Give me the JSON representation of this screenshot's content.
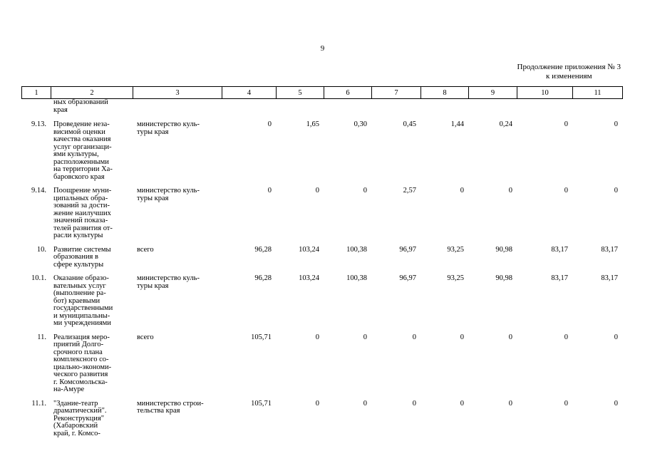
{
  "page_number": "9",
  "appendix": {
    "line1": "Продолжение приложения № 3",
    "line2": "к изменениям"
  },
  "header": [
    "1",
    "2",
    "3",
    "4",
    "5",
    "6",
    "7",
    "8",
    "9",
    "10",
    "11"
  ],
  "rows": [
    {
      "code": "",
      "name": "ных образований\nкрая",
      "executor": "",
      "values": [
        "",
        "",
        "",
        "",
        "",
        "",
        "",
        ""
      ]
    },
    {
      "code": "9.13.",
      "name": "Проведение неза-\nвисимой оценки\nкачества оказания\nуслуг организаци-\nями культуры,\nрасположенными\nна территории Ха-\nбаровского края",
      "executor": "министерство куль-\nтуры края",
      "values": [
        "0",
        "1,65",
        "0,30",
        "0,45",
        "1,44",
        "0,24",
        "0",
        "0"
      ]
    },
    {
      "code": "9.14.",
      "name": "Поощрение муни-\nципальных обра-\nзований за дости-\nжение наилучших\nзначений показа-\nтелей развития от-\nрасли культуры",
      "executor": "министерство куль-\nтуры края",
      "values": [
        "0",
        "0",
        "0",
        "2,57",
        "0",
        "0",
        "0",
        "0"
      ]
    },
    {
      "code": "10.",
      "name": "Развитие системы\nобразования в\nсфере культуры",
      "executor": "всего",
      "values": [
        "96,28",
        "103,24",
        "100,38",
        "96,97",
        "93,25",
        "90,98",
        "83,17",
        "83,17"
      ]
    },
    {
      "code": "10.1.",
      "name": "Оказание образо-\nвательных услуг\n(выполнение ра-\nбот) краевыми\nгосударственными\nи муниципальны-\nми учреждениями",
      "executor": "министерство куль-\nтуры края",
      "values": [
        "96,28",
        "103,24",
        "100,38",
        "96,97",
        "93,25",
        "90,98",
        "83,17",
        "83,17"
      ]
    },
    {
      "code": "11.",
      "name": "Реализация меро-\nприятий Долго-\nсрочного плана\nкомплексного со-\nциально-экономи-\nческого развития\nг. Комсомольска-\nна-Амуре",
      "executor": "всего",
      "values": [
        "105,71",
        "0",
        "0",
        "0",
        "0",
        "0",
        "0",
        "0"
      ]
    },
    {
      "code": "11.1.",
      "name": "\"Здание-театр\nдраматический\".\nРеконструкция\"\n(Хабаровский\nкрай, г. Комсо-",
      "executor": "министерство строи-\nтельства края",
      "values": [
        "105,71",
        "0",
        "0",
        "0",
        "0",
        "0",
        "0",
        "0"
      ]
    }
  ]
}
